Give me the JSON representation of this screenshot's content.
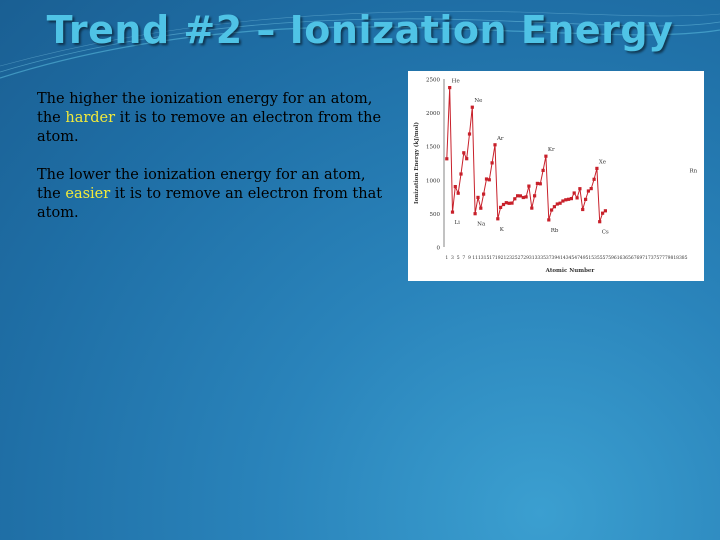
{
  "slide": {
    "title": "Trend #2 – Ionization Energy",
    "para1": {
      "before": "The higher the ionization energy for an atom, the ",
      "highlight": "harder",
      "after": "  it is to remove an electron from the atom."
    },
    "para2": {
      "before": "The lower the ionization energy for an atom, the ",
      "highlight": "easier",
      "after": "  it is to remove an electron from that atom."
    },
    "colors": {
      "title": "#4fc3e6",
      "highlight": "#f2ea3a",
      "series": "#c8202a",
      "background": "#2a84bb"
    }
  },
  "chart_data": {
    "type": "line",
    "xlabel": "Atomic Number",
    "ylabel": "Ionization Energy (kJ/mol)",
    "ylim": [
      0,
      2500
    ],
    "yticks": [
      0,
      500,
      1000,
      1500,
      2000,
      2500
    ],
    "xticks": [
      "1",
      "3",
      "5",
      "7",
      "9",
      "11",
      "13",
      "15",
      "17",
      "19",
      "21",
      "23",
      "25",
      "27",
      "29",
      "31",
      "33",
      "35",
      "37",
      "39",
      "41",
      "43",
      "45",
      "47",
      "49",
      "51",
      "53",
      "55",
      "57",
      "59",
      "61",
      "63",
      "65",
      "67",
      "69",
      "71",
      "73",
      "75",
      "77",
      "79",
      "81",
      "83",
      "85"
    ],
    "grid": false,
    "legend": "none",
    "series": [
      {
        "x": [
          1,
          2,
          3,
          4,
          5,
          6,
          7,
          8,
          9,
          10,
          11,
          12,
          13,
          14,
          15,
          16,
          17,
          18,
          19,
          20,
          21,
          22,
          23,
          24,
          25,
          26,
          27,
          28,
          29,
          30,
          31,
          32,
          33,
          34,
          35,
          36,
          37,
          38,
          39,
          40,
          41,
          42,
          43,
          44,
          45,
          46,
          47,
          48,
          49,
          50,
          51,
          52,
          53,
          54,
          55,
          56,
          57
        ],
        "y": [
          1312,
          2372,
          520,
          899,
          801,
          1086,
          1402,
          1314,
          1681,
          2081,
          496,
          738,
          578,
          787,
          1012,
          1000,
          1251,
          1521,
          419,
          590,
          633,
          659,
          651,
          653,
          717,
          762,
          760,
          737,
          745,
          906,
          579,
          762,
          947,
          941,
          1140,
          1351,
          403,
          550,
          600,
          640,
          652,
          684,
          702,
          710,
          720,
          804,
          731,
          868,
          558,
          709,
          834,
          869,
          1008,
          1170,
          376,
          503,
          538
        ]
      }
    ],
    "annotations": [
      {
        "text": "He",
        "x": 2,
        "y": 2372
      },
      {
        "text": "Ne",
        "x": 10,
        "y": 2081
      },
      {
        "text": "Ar",
        "x": 18,
        "y": 1521
      },
      {
        "text": "Kr",
        "x": 36,
        "y": 1351
      },
      {
        "text": "Xe",
        "x": 54,
        "y": 1170
      },
      {
        "text": "Rn",
        "x": 86,
        "y": 1037
      },
      {
        "text": "Li",
        "x": 3,
        "y": 520
      },
      {
        "text": "Na",
        "x": 11,
        "y": 496
      },
      {
        "text": "K",
        "x": 19,
        "y": 419
      },
      {
        "text": "Rb",
        "x": 37,
        "y": 403
      },
      {
        "text": "Cs",
        "x": 55,
        "y": 376
      }
    ]
  }
}
